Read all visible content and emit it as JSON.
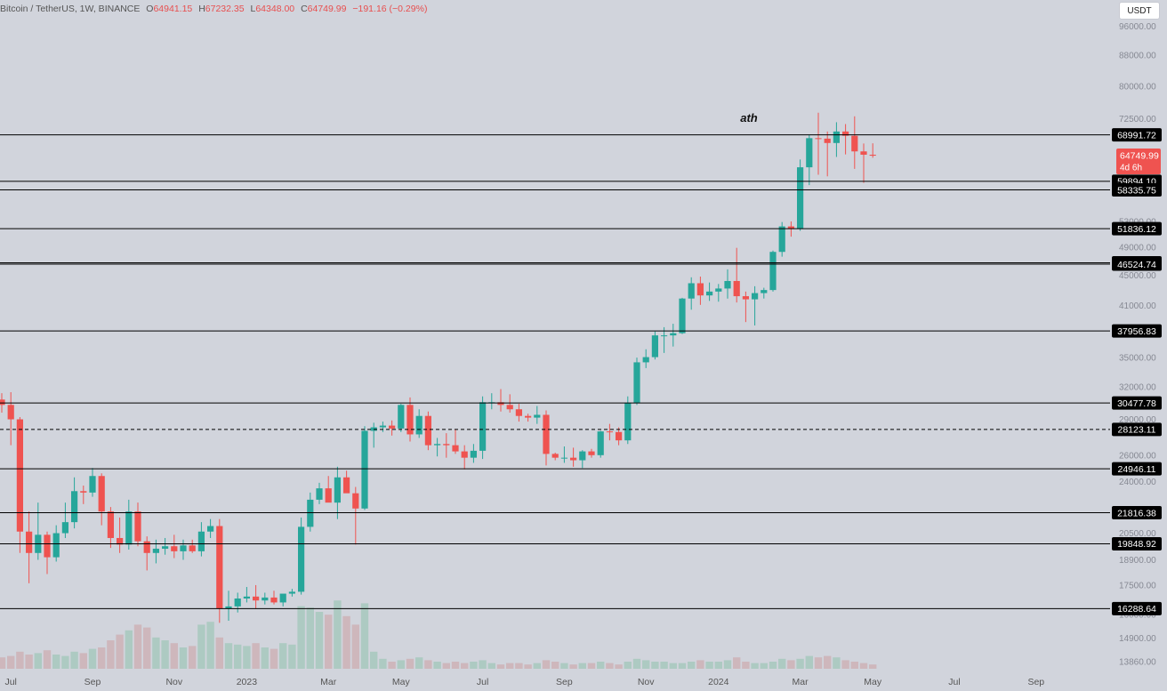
{
  "header": {
    "symbol": "Bitcoin / TetherUS, 1W, BINANCE",
    "open_label": "O",
    "open": "64941.15",
    "high_label": "H",
    "high": "67232.35",
    "low_label": "L",
    "low": "64348.00",
    "close_label": "C",
    "close": "64749.99",
    "change": "−191.16 (−0.29%)",
    "currency_button": "USDT"
  },
  "colors": {
    "up": "#26a69a",
    "down": "#ef5350",
    "background": "#d1d4dc",
    "line": "#000000",
    "label_bg": "#000000",
    "current_bg": "#ef5350"
  },
  "chart_data": {
    "type": "candlestick",
    "y_scale": "log",
    "y_ticks": [
      13860,
      14900,
      16000,
      17500,
      18900,
      20500,
      22000,
      24000,
      26000,
      29000,
      32000,
      35000,
      38000,
      41000,
      45000,
      49000,
      53000,
      58000,
      64000,
      72500,
      80000,
      88000,
      96000
    ],
    "y_tick_labels": [
      "13860.00",
      "14900.00",
      "16000.00",
      "17500.00",
      "18900.00",
      "20500.00",
      "22000.00",
      "24000.00",
      "26000.00",
      "29000.00",
      "32000.00",
      "35000.00",
      "38000.00",
      "41000.00",
      "45000.00",
      "49000.00",
      "53000.00",
      "58000.00",
      "64000.00",
      "72500.00",
      "80000.00",
      "88000.00",
      "96000.00"
    ],
    "x_labels": [
      {
        "label": "Jul",
        "week": 1
      },
      {
        "label": "Sep",
        "week": 10
      },
      {
        "label": "Nov",
        "week": 19
      },
      {
        "label": "2023",
        "week": 27
      },
      {
        "label": "Mar",
        "week": 36
      },
      {
        "label": "May",
        "week": 44
      },
      {
        "label": "Jul",
        "week": 53
      },
      {
        "label": "Sep",
        "week": 62
      },
      {
        "label": "Nov",
        "week": 71
      },
      {
        "label": "2024",
        "week": 79
      },
      {
        "label": "Mar",
        "week": 88
      },
      {
        "label": "May",
        "week": 96
      },
      {
        "label": "Jul",
        "week": 105
      },
      {
        "label": "Sep",
        "week": 114
      }
    ],
    "candles": [
      [
        30800,
        31400,
        29600,
        30300
      ],
      [
        30300,
        31500,
        26800,
        29000
      ],
      [
        29000,
        29200,
        19300,
        20600
      ],
      [
        20600,
        21900,
        17600,
        19300
      ],
      [
        19300,
        22500,
        18900,
        20400
      ],
      [
        20400,
        20600,
        18100,
        19050
      ],
      [
        19050,
        21000,
        18800,
        20500
      ],
      [
        20500,
        22500,
        20200,
        21200
      ],
      [
        21200,
        24300,
        20800,
        23300
      ],
      [
        23300,
        23700,
        22400,
        23200
      ],
      [
        23200,
        25000,
        22900,
        24400
      ],
      [
        24400,
        24600,
        21000,
        21900
      ],
      [
        21900,
        22200,
        19600,
        20200
      ],
      [
        20200,
        21500,
        19300,
        19800
      ],
      [
        19800,
        22700,
        19500,
        21900
      ],
      [
        21900,
        22500,
        19700,
        20000
      ],
      [
        20000,
        20300,
        18300,
        19300
      ],
      [
        19300,
        20100,
        18700,
        19550
      ],
      [
        19550,
        20200,
        19200,
        19700
      ],
      [
        19700,
        20400,
        19000,
        19400
      ],
      [
        19400,
        20100,
        18900,
        19750
      ],
      [
        19750,
        20100,
        19300,
        19400
      ],
      [
        19400,
        21200,
        19100,
        20600
      ],
      [
        20600,
        21400,
        20200,
        20950
      ],
      [
        20950,
        21400,
        15600,
        16300
      ],
      [
        16300,
        17200,
        15700,
        16400
      ],
      [
        16400,
        17100,
        16100,
        16800
      ],
      [
        16800,
        17400,
        16600,
        16900
      ],
      [
        16900,
        17500,
        16300,
        16700
      ],
      [
        16700,
        17100,
        16500,
        16850
      ],
      [
        16850,
        17200,
        16500,
        16600
      ],
      [
        16600,
        17000,
        16400,
        17050
      ],
      [
        17050,
        17300,
        16900,
        17150
      ],
      [
        17150,
        21500,
        17000,
        20900
      ],
      [
        20900,
        23200,
        20600,
        22700
      ],
      [
        22700,
        23900,
        22400,
        23500
      ],
      [
        23500,
        24400,
        22900,
        22500
      ],
      [
        22500,
        25100,
        21400,
        24300
      ],
      [
        24300,
        24800,
        23700,
        23150
      ],
      [
        23150,
        23600,
        19800,
        22100
      ],
      [
        22100,
        28400,
        22000,
        28000
      ],
      [
        28000,
        28700,
        26600,
        28300
      ],
      [
        28300,
        28800,
        27900,
        28450
      ],
      [
        28450,
        28900,
        27600,
        28200
      ],
      [
        28200,
        30400,
        27900,
        30300
      ],
      [
        30300,
        31000,
        27100,
        27700
      ],
      [
        27700,
        29900,
        27400,
        29300
      ],
      [
        29300,
        29700,
        26400,
        26800
      ],
      [
        26800,
        27400,
        25900,
        26900
      ],
      [
        26900,
        27800,
        25800,
        26800
      ],
      [
        26800,
        28100,
        26100,
        26300
      ],
      [
        26300,
        26800,
        24900,
        25800
      ],
      [
        25800,
        26900,
        25400,
        26350
      ],
      [
        26350,
        31100,
        25700,
        30550
      ],
      [
        30550,
        31400,
        29900,
        30550
      ],
      [
        30550,
        31800,
        29700,
        30300
      ],
      [
        30300,
        31300,
        29600,
        29900
      ],
      [
        29900,
        30400,
        28800,
        29300
      ],
      [
        29300,
        29500,
        28800,
        29150
      ],
      [
        29150,
        30200,
        28600,
        29400
      ],
      [
        29400,
        29800,
        25200,
        26100
      ],
      [
        26100,
        26200,
        25600,
        25800
      ],
      [
        25800,
        26700,
        25400,
        25800
      ],
      [
        25800,
        26600,
        25100,
        25600
      ],
      [
        25600,
        26400,
        25000,
        26300
      ],
      [
        26300,
        26500,
        25800,
        26000
      ],
      [
        26000,
        28000,
        25800,
        27950
      ],
      [
        27950,
        28600,
        27200,
        27900
      ],
      [
        27900,
        28300,
        26800,
        27200
      ],
      [
        27200,
        31100,
        26900,
        30500
      ],
      [
        30500,
        35000,
        30300,
        34500
      ],
      [
        34500,
        35900,
        33900,
        35050
      ],
      [
        35050,
        37900,
        34800,
        37450
      ],
      [
        37450,
        38400,
        35500,
        37450
      ],
      [
        37450,
        38800,
        36200,
        37700
      ],
      [
        37700,
        42000,
        37600,
        41900
      ],
      [
        41900,
        44700,
        40500,
        43900
      ],
      [
        43900,
        44800,
        41100,
        42300
      ],
      [
        42300,
        44000,
        41600,
        42800
      ],
      [
        42800,
        43800,
        41500,
        43200
      ],
      [
        43200,
        45800,
        41900,
        44200
      ],
      [
        44200,
        48900,
        41400,
        42200
      ],
      [
        42200,
        42800,
        39000,
        41800
      ],
      [
        41800,
        43500,
        38600,
        42600
      ],
      [
        42600,
        43300,
        41900,
        43000
      ],
      [
        43000,
        48500,
        42800,
        48300
      ],
      [
        48300,
        52900,
        47600,
        52200
      ],
      [
        52200,
        53000,
        50600,
        51800
      ],
      [
        51800,
        64000,
        51500,
        62500
      ],
      [
        62500,
        69000,
        59200,
        68300
      ],
      [
        68300,
        73800,
        61100,
        68200
      ],
      [
        68200,
        69700,
        60800,
        67300
      ],
      [
        67300,
        71700,
        64500,
        69700
      ],
      [
        69700,
        71300,
        65000,
        68800
      ],
      [
        68800,
        73000,
        62200,
        65600
      ],
      [
        65600,
        67200,
        59600,
        64941.15
      ],
      [
        64941.15,
        67232.35,
        64348,
        64749.99
      ]
    ],
    "volumes": [
      8,
      9,
      12,
      10,
      11,
      13,
      10,
      9,
      12,
      11,
      14,
      15,
      20,
      24,
      27,
      31,
      29,
      22,
      20,
      18,
      15,
      16,
      31,
      33,
      22,
      18,
      17,
      16,
      18,
      15,
      14,
      18,
      17,
      44,
      43,
      40,
      38,
      48,
      37,
      31,
      46,
      12,
      7,
      5,
      6,
      7,
      8,
      6,
      5,
      4,
      5,
      4,
      5,
      6,
      4,
      3,
      4,
      4,
      3,
      4,
      6,
      5,
      4,
      3,
      4,
      4,
      5,
      4,
      3,
      5,
      7,
      6,
      5,
      5,
      4,
      4,
      5,
      6,
      5,
      5,
      6,
      8,
      5,
      4,
      4,
      5,
      7,
      6,
      7,
      9,
      8,
      9,
      8,
      6,
      5,
      4,
      3
    ],
    "price_lines": [
      {
        "value": 68991.72,
        "label": "68991.72",
        "dashed": false
      },
      {
        "value": 59894.1,
        "label": "59894.10",
        "dashed": false
      },
      {
        "value": 58335.75,
        "label": "58335.75",
        "dashed": false
      },
      {
        "value": 51836.12,
        "label": "51836.12",
        "dashed": false
      },
      {
        "value": 46721.74,
        "label": "46721.74",
        "dashed": false
      },
      {
        "value": 46524.74,
        "label": "46524.74",
        "dashed": false
      },
      {
        "value": 37956.83,
        "label": "37956.83",
        "dashed": false
      },
      {
        "value": 30477.78,
        "label": "30477.78",
        "dashed": false
      },
      {
        "value": 28123.11,
        "label": "28123.11",
        "dashed": true
      },
      {
        "value": 24946.11,
        "label": "24946.11",
        "dashed": false
      },
      {
        "value": 21816.38,
        "label": "21816.38",
        "dashed": false
      },
      {
        "value": 19848.92,
        "label": "19848.92",
        "dashed": false
      },
      {
        "value": 16288.64,
        "label": "16288.64",
        "dashed": false
      }
    ],
    "current_price": {
      "value": 64749.99,
      "label": "64749.99",
      "countdown": "4d 6h"
    },
    "annotation": {
      "text": "ath"
    }
  }
}
